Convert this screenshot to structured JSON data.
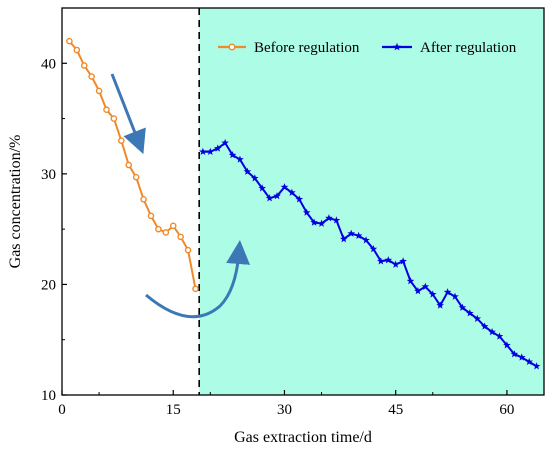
{
  "chart_data": {
    "type": "line",
    "xlabel": "Gas extraction time/d",
    "ylabel": "Gas concentration/%",
    "xlim": [
      0,
      65
    ],
    "ylim": [
      10,
      45
    ],
    "xticks": [
      0,
      15,
      30,
      45,
      60
    ],
    "yticks": [
      10,
      20,
      30,
      40
    ],
    "regulation_day": 18.5,
    "grid": false,
    "legend_position": "top-right",
    "shaded_region": {
      "from": 18.5,
      "to": 65,
      "color": "#adfde6"
    },
    "series": [
      {
        "name": "Before regulation",
        "color": "#f0892a",
        "marker": "circle",
        "x": [
          1,
          2,
          3,
          4,
          5,
          6,
          7,
          8,
          9,
          10,
          11,
          12,
          13,
          14,
          15,
          16,
          17,
          18
        ],
        "y": [
          42.0,
          41.2,
          39.8,
          38.8,
          37.5,
          35.8,
          35.0,
          33.0,
          30.8,
          29.7,
          27.7,
          26.2,
          25.0,
          24.7,
          25.3,
          24.3,
          23.1,
          19.6
        ]
      },
      {
        "name": "After regulation",
        "color": "#0000e0",
        "marker": "star",
        "x": [
          19,
          20,
          21,
          22,
          23,
          24,
          25,
          26,
          27,
          28,
          29,
          30,
          31,
          32,
          33,
          34,
          35,
          36,
          37,
          38,
          39,
          40,
          41,
          42,
          43,
          44,
          45,
          46,
          47,
          48,
          49,
          50,
          51,
          52,
          53,
          54,
          55,
          56,
          57,
          58,
          59,
          60,
          61,
          62,
          63,
          64
        ],
        "y": [
          32.0,
          32.0,
          32.3,
          32.8,
          31.7,
          31.3,
          30.2,
          29.6,
          28.7,
          27.8,
          28.0,
          28.8,
          28.3,
          27.7,
          26.5,
          25.6,
          25.5,
          26.0,
          25.8,
          24.1,
          24.6,
          24.4,
          24.0,
          23.2,
          22.1,
          22.2,
          21.8,
          22.1,
          20.3,
          19.4,
          19.8,
          19.1,
          18.1,
          19.3,
          18.9,
          17.9,
          17.4,
          16.9,
          16.2,
          15.7,
          15.3,
          14.5,
          13.7,
          13.4,
          13.0,
          12.6
        ]
      }
    ],
    "annotations": [
      {
        "type": "arrow",
        "color": "#3c78b5",
        "description": "downward trend before regulation"
      },
      {
        "type": "curved-arrow",
        "color": "#3c78b5",
        "description": "turnaround at regulation"
      }
    ]
  }
}
